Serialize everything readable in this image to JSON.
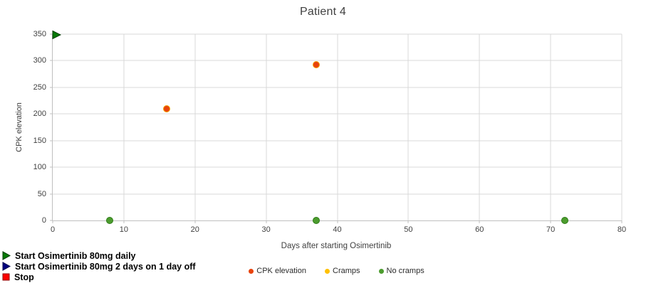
{
  "title": "Patient 4",
  "axes": {
    "x": {
      "label": "Days after starting Osimertinib",
      "min": 0,
      "max": 80,
      "ticks": [
        0,
        10,
        20,
        30,
        40,
        50,
        60,
        70,
        80
      ]
    },
    "y": {
      "label": "CPK elevation",
      "min": 0,
      "max": 350,
      "ticks": [
        0,
        50,
        100,
        150,
        200,
        250,
        300,
        350
      ]
    }
  },
  "legend": [
    {
      "label": "CPK elevation",
      "color": "#e8430d",
      "ring": "#f4a000",
      "shape": "circle"
    },
    {
      "label": "Cramps",
      "color": "#ffc000",
      "ring": "#e0a000",
      "shape": "circle"
    },
    {
      "label": "No cramps",
      "color": "#4c9c2e",
      "ring": "#2e7d18",
      "shape": "circle"
    }
  ],
  "annotations": [
    {
      "label": "Start Osimertinib 80mg daily",
      "marker": "triangle-right",
      "color": "#067a06",
      "stroke": "#033d03"
    },
    {
      "label": "Start Osimertinib 80mg 2 days on 1 day off",
      "marker": "triangle-right",
      "color": "#000080",
      "stroke": "#000050"
    },
    {
      "label": "Stop",
      "marker": "square",
      "color": "#ff0000",
      "stroke": "#8c0000"
    }
  ],
  "chart_data": {
    "type": "scatter",
    "title": "Patient 4",
    "xlabel": "Days after starting Osimertinib",
    "ylabel": "CPK elevation",
    "xlim": [
      0,
      80
    ],
    "ylim": [
      0,
      350
    ],
    "grid": true,
    "legend_position": "bottom-center",
    "series": [
      {
        "name": "CPK elevation",
        "marker": "circle",
        "color": "#e8430d",
        "ring": "#f4a000",
        "points": [
          {
            "x": 16,
            "y": 210
          },
          {
            "x": 37,
            "y": 293
          }
        ]
      },
      {
        "name": "Cramps",
        "marker": "circle",
        "color": "#ffc000",
        "ring": "#e0a000",
        "points": []
      },
      {
        "name": "No cramps",
        "marker": "circle",
        "color": "#4c9c2e",
        "ring": "#2e7d18",
        "points": [
          {
            "x": 8,
            "y": 0
          },
          {
            "x": 37,
            "y": 0
          },
          {
            "x": 72,
            "y": 0
          }
        ]
      },
      {
        "name": "Start Osimertinib 80mg daily",
        "marker": "triangle-right",
        "color": "#067a06",
        "ring": "#033d03",
        "points": [
          {
            "x": 0,
            "y": 348
          }
        ]
      }
    ]
  }
}
